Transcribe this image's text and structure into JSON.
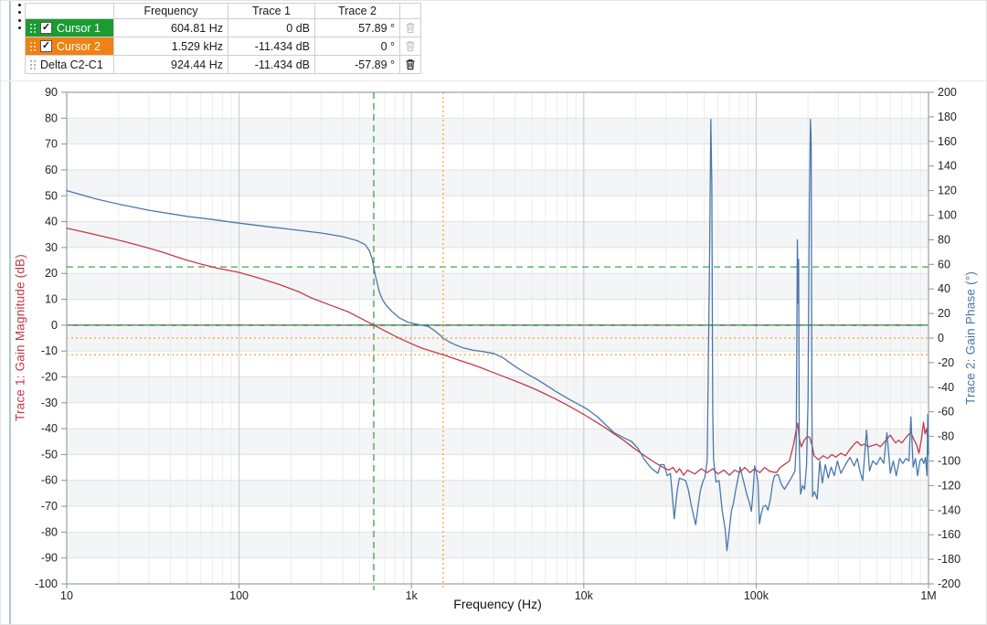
{
  "cursor_table": {
    "columns": {
      "label": "",
      "frequency": "Frequency",
      "trace1": "Trace 1",
      "trace2": "Trace 2",
      "actions": ""
    },
    "rows": [
      {
        "label": "Cursor 1",
        "has_checkbox": true,
        "checked": true,
        "check_glyph": "✓",
        "row_color": "#1a9c33",
        "text_color": "#ffffff",
        "frequency": "604.81 Hz",
        "trace1": "0 dB",
        "trace2": "57.89 °",
        "delete_enabled": false
      },
      {
        "label": "Cursor 2",
        "has_checkbox": true,
        "checked": true,
        "check_glyph": "✓",
        "row_color": "#ef8214",
        "text_color": "#ffffff",
        "frequency": "1.529 kHz",
        "trace1": "-11.434 dB",
        "trace2": "0 °",
        "delete_enabled": false
      },
      {
        "label": "Delta C2-C1",
        "has_checkbox": false,
        "checked": false,
        "check_glyph": "",
        "row_color": "#ffffff",
        "text_color": "#1a1a1a",
        "frequency": "924.44 Hz",
        "trace1": "-11.434 dB",
        "trace2": "-57.89 °",
        "delete_enabled": true
      }
    ]
  },
  "chart_data": {
    "type": "line",
    "x_axis": {
      "label": "Frequency (Hz)",
      "scale": "log",
      "min": 10,
      "max": 1000000,
      "tick_labels": [
        "10",
        "100",
        "1k",
        "10k",
        "100k",
        "1M"
      ]
    },
    "y_axis_left": {
      "label": "Trace 1: Gain Magnitude (dB)",
      "min": -100,
      "max": 90,
      "step": 10,
      "color": "#c23b49"
    },
    "y_axis_right": {
      "label": "Trace 2: Gain Phase (°)",
      "min": -200,
      "max": 200,
      "step": 20,
      "color": "#4a78ac"
    },
    "grid": true,
    "zero_line_value": 0,
    "cursors": [
      {
        "name": "Cursor 1",
        "freq_hz": 604.81,
        "gain_db": 0,
        "phase_deg": 57.89,
        "color": "#3fa54b",
        "dash": "7,5"
      },
      {
        "name": "Cursor 2",
        "freq_hz": 1529,
        "gain_db": -11.434,
        "phase_deg": 0,
        "color": "#f9a13c",
        "dash": "2,3"
      }
    ],
    "series": [
      {
        "name": "Trace 1: Gain Magnitude (dB)",
        "axis": "left",
        "color": "#c23b49",
        "points": [
          [
            10,
            37.5
          ],
          [
            13,
            35.8
          ],
          [
            17,
            34
          ],
          [
            22,
            32.2
          ],
          [
            28,
            30.3
          ],
          [
            36,
            28.2
          ],
          [
            48,
            25.4
          ],
          [
            60,
            23.6
          ],
          [
            75,
            22
          ],
          [
            100,
            20.4
          ],
          [
            130,
            18.2
          ],
          [
            170,
            15.8
          ],
          [
            220,
            13
          ],
          [
            263,
            10.5
          ],
          [
            330,
            8
          ],
          [
            428,
            5.2
          ],
          [
            520,
            2.3
          ],
          [
            604.81,
            0
          ],
          [
            700,
            -2.2
          ],
          [
            800,
            -4.2
          ],
          [
            900,
            -5.8
          ],
          [
            1000,
            -7.2
          ],
          [
            1150,
            -8.9
          ],
          [
            1300,
            -10
          ],
          [
            1529,
            -11.434
          ],
          [
            1700,
            -12.5
          ],
          [
            1900,
            -13.6
          ],
          [
            2200,
            -15
          ],
          [
            2500,
            -16.3
          ],
          [
            2900,
            -18
          ],
          [
            3300,
            -19.4
          ],
          [
            3800,
            -21
          ],
          [
            4400,
            -22.7
          ],
          [
            5000,
            -24.2
          ],
          [
            5800,
            -26.2
          ],
          [
            6700,
            -28.2
          ],
          [
            7700,
            -30.3
          ],
          [
            8900,
            -32.6
          ],
          [
            10000,
            -34.5
          ],
          [
            11500,
            -37
          ],
          [
            13000,
            -39.2
          ],
          [
            15000,
            -42
          ],
          [
            17000,
            -44.5
          ],
          [
            19500,
            -47.5
          ],
          [
            22000,
            -50
          ],
          [
            25000,
            -52.5
          ],
          [
            28000,
            -54.5
          ],
          [
            31000,
            -56
          ],
          [
            33000,
            -55
          ],
          [
            34500,
            -57
          ],
          [
            36000,
            -55.5
          ],
          [
            38000,
            -58
          ],
          [
            40000,
            -56
          ],
          [
            44000,
            -57.5
          ],
          [
            48000,
            -55.5
          ],
          [
            52000,
            -57
          ],
          [
            56000,
            -55.5
          ],
          [
            60000,
            -57.5
          ],
          [
            65000,
            -56
          ],
          [
            70000,
            -58
          ],
          [
            75000,
            -56
          ],
          [
            80000,
            -57
          ],
          [
            86000,
            -55
          ],
          [
            92000,
            -57
          ],
          [
            98000,
            -55.5
          ],
          [
            105000,
            -57
          ],
          [
            112000,
            -55
          ],
          [
            120000,
            -56.5
          ],
          [
            131000,
            -57
          ],
          [
            138000,
            -55
          ],
          [
            145000,
            -54
          ],
          [
            156000,
            -52.5
          ],
          [
            165000,
            -46
          ],
          [
            170000,
            -41
          ],
          [
            174000,
            -37.9
          ],
          [
            178000,
            -44
          ],
          [
            183000,
            -47
          ],
          [
            190000,
            -44.5
          ],
          [
            198000,
            -43
          ],
          [
            205000,
            -43.5
          ],
          [
            212000,
            -47
          ],
          [
            217000,
            -50.5
          ],
          [
            230000,
            -52
          ],
          [
            245000,
            -50.5
          ],
          [
            260000,
            -51.5
          ],
          [
            275000,
            -50
          ],
          [
            290000,
            -51
          ],
          [
            310000,
            -49.5
          ],
          [
            330000,
            -50.5
          ],
          [
            350000,
            -48
          ],
          [
            370000,
            -46
          ],
          [
            386000,
            -45
          ],
          [
            405000,
            -46.5
          ],
          [
            425000,
            -46
          ],
          [
            450000,
            -47
          ],
          [
            475000,
            -46.5
          ],
          [
            500000,
            -46
          ],
          [
            525000,
            -47
          ],
          [
            550000,
            -45.5
          ],
          [
            574000,
            -44
          ],
          [
            600000,
            -42.5
          ],
          [
            620000,
            -44
          ],
          [
            645000,
            -45.5
          ],
          [
            670000,
            -44.5
          ],
          [
            700000,
            -45.5
          ],
          [
            730000,
            -44
          ],
          [
            760000,
            -42.5
          ],
          [
            790000,
            -41.5
          ],
          [
            820000,
            -44
          ],
          [
            850000,
            -46
          ],
          [
            880000,
            -49.5
          ],
          [
            910000,
            -44
          ],
          [
            935000,
            -37.5
          ],
          [
            955000,
            -42
          ],
          [
            975000,
            -40
          ],
          [
            990000,
            -44
          ],
          [
            1000000,
            -46.5
          ]
        ]
      },
      {
        "name": "Trace 2: Gain Phase (°)",
        "axis": "right",
        "color": "#4a78ac",
        "points": [
          [
            10,
            120
          ],
          [
            15,
            113
          ],
          [
            20,
            109
          ],
          [
            30,
            104
          ],
          [
            50,
            99
          ],
          [
            70,
            96.5
          ],
          [
            100,
            93.5
          ],
          [
            150,
            90.5
          ],
          [
            200,
            88.5
          ],
          [
            300,
            85.5
          ],
          [
            400,
            82.5
          ],
          [
            480,
            79.5
          ],
          [
            540,
            76
          ],
          [
            570,
            71
          ],
          [
            590,
            65
          ],
          [
            604.81,
            57.89
          ],
          [
            615,
            52
          ],
          [
            630,
            46
          ],
          [
            650,
            38
          ],
          [
            680,
            31
          ],
          [
            720,
            26
          ],
          [
            780,
            21
          ],
          [
            850,
            16.5
          ],
          [
            950,
            13
          ],
          [
            1050,
            11.5
          ],
          [
            1150,
            10.5
          ],
          [
            1250,
            9.5
          ],
          [
            1350,
            6.5
          ],
          [
            1450,
            3
          ],
          [
            1529,
            0
          ],
          [
            1650,
            -3
          ],
          [
            1800,
            -5.5
          ],
          [
            2000,
            -8
          ],
          [
            2300,
            -10
          ],
          [
            2600,
            -11
          ],
          [
            3000,
            -12.5
          ],
          [
            3400,
            -16
          ],
          [
            3800,
            -21
          ],
          [
            4300,
            -26
          ],
          [
            4800,
            -30
          ],
          [
            5400,
            -34
          ],
          [
            6000,
            -38
          ],
          [
            6800,
            -43
          ],
          [
            7600,
            -47
          ],
          [
            8500,
            -51
          ],
          [
            9500,
            -54.5
          ],
          [
            10500,
            -58
          ],
          [
            12000,
            -64
          ],
          [
            13500,
            -71
          ],
          [
            15000,
            -77
          ],
          [
            17000,
            -81
          ],
          [
            18900,
            -84
          ],
          [
            20700,
            -90
          ],
          [
            22500,
            -99
          ],
          [
            24700,
            -106
          ],
          [
            26900,
            -110
          ],
          [
            27900,
            -103
          ],
          [
            29200,
            -103
          ],
          [
            30500,
            -112
          ],
          [
            31800,
            -110
          ],
          [
            33500,
            -147
          ],
          [
            34800,
            -125
          ],
          [
            35800,
            -114
          ],
          [
            37500,
            -115
          ],
          [
            39000,
            -116
          ],
          [
            40500,
            -124
          ],
          [
            42000,
            -136
          ],
          [
            44600,
            -152
          ],
          [
            46000,
            -137
          ],
          [
            47500,
            -124
          ],
          [
            49000,
            -117
          ],
          [
            50500,
            -113
          ],
          [
            52000,
            -100
          ],
          [
            53600,
            55
          ],
          [
            54600,
            178
          ],
          [
            55300,
            125
          ],
          [
            56000,
            -60
          ],
          [
            56600,
            -99
          ],
          [
            58500,
            -117
          ],
          [
            61000,
            -116
          ],
          [
            63500,
            -140
          ],
          [
            66000,
            -155
          ],
          [
            67700,
            -173
          ],
          [
            70000,
            -155
          ],
          [
            72000,
            -140
          ],
          [
            73700,
            -135
          ],
          [
            76000,
            -124
          ],
          [
            78500,
            -114
          ],
          [
            80900,
            -105
          ],
          [
            83000,
            -112
          ],
          [
            85700,
            -120
          ],
          [
            88500,
            -128
          ],
          [
            91500,
            -134
          ],
          [
            93900,
            -141
          ],
          [
            96000,
            -125
          ],
          [
            98000,
            -104
          ],
          [
            100500,
            -110
          ],
          [
            102500,
            -117
          ],
          [
            104500,
            -151
          ],
          [
            107000,
            -143
          ],
          [
            110000,
            -137
          ],
          [
            113500,
            -136
          ],
          [
            117000,
            -140
          ],
          [
            121000,
            -131
          ],
          [
            125000,
            -117
          ],
          [
            128000,
            -112
          ],
          [
            134000,
            -111
          ],
          [
            140000,
            -119
          ],
          [
            146000,
            -123
          ],
          [
            152000,
            -119
          ],
          [
            158000,
            -115
          ],
          [
            164000,
            -111
          ],
          [
            168000,
            -108
          ],
          [
            171000,
            -85
          ],
          [
            173500,
            80
          ],
          [
            175500,
            28
          ],
          [
            176500,
            64
          ],
          [
            178000,
            -90
          ],
          [
            181000,
            -127
          ],
          [
            186000,
            -120
          ],
          [
            191000,
            -123
          ],
          [
            196000,
            -104
          ],
          [
            200000,
            -50
          ],
          [
            203500,
            110
          ],
          [
            206500,
            178
          ],
          [
            208500,
            160
          ],
          [
            210500,
            -60
          ],
          [
            212500,
            -129
          ],
          [
            218000,
            -125
          ],
          [
            226000,
            -131
          ],
          [
            234000,
            -100
          ],
          [
            242000,
            -118
          ],
          [
            252000,
            -103
          ],
          [
            262000,
            -114
          ],
          [
            272000,
            -105
          ],
          [
            284000,
            -112
          ],
          [
            296000,
            -100
          ],
          [
            310000,
            -110
          ],
          [
            330000,
            -103
          ],
          [
            350000,
            -97
          ],
          [
            370000,
            -104
          ],
          [
            386000,
            -98
          ],
          [
            400000,
            -108
          ],
          [
            415000,
            -116
          ],
          [
            437000,
            -75
          ],
          [
            455000,
            -108
          ],
          [
            475000,
            -100
          ],
          [
            500000,
            -103
          ],
          [
            525000,
            -97
          ],
          [
            550000,
            -102
          ],
          [
            574000,
            -77
          ],
          [
            600000,
            -110
          ],
          [
            625000,
            -100
          ],
          [
            650000,
            -112
          ],
          [
            680000,
            -98
          ],
          [
            710000,
            -102
          ],
          [
            740000,
            -98
          ],
          [
            770000,
            -100
          ],
          [
            790000,
            -64
          ],
          [
            815000,
            -105
          ],
          [
            840000,
            -98
          ],
          [
            865000,
            -112
          ],
          [
            890000,
            -100
          ],
          [
            915000,
            -98
          ],
          [
            940000,
            -102
          ],
          [
            960000,
            -97
          ],
          [
            980000,
            -112
          ],
          [
            990000,
            -62
          ],
          [
            1000000,
            -95
          ]
        ]
      }
    ]
  }
}
